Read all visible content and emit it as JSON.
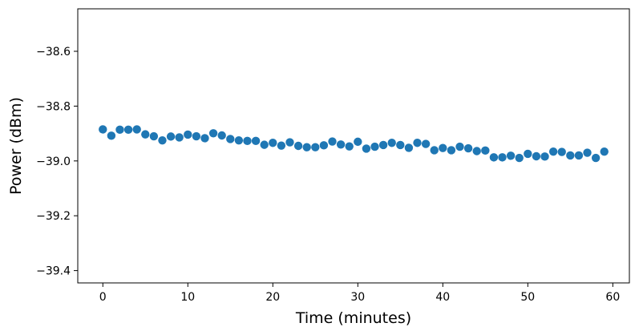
{
  "chart_data": {
    "type": "scatter",
    "title": "",
    "xlabel": "Time (minutes)",
    "ylabel": "Power (dBm)",
    "xlim": [
      -2.95,
      61.95
    ],
    "ylim": [
      -39.445,
      -38.445
    ],
    "xticks": [
      0,
      10,
      20,
      30,
      40,
      50,
      60
    ],
    "yticks": [
      -39.4,
      -39.2,
      -39.0,
      -38.8,
      -38.6
    ],
    "xtick_labels": [
      "0",
      "10",
      "20",
      "30",
      "40",
      "50",
      "60"
    ],
    "ytick_labels": [
      "−39.4",
      "−39.2",
      "−39.0",
      "−38.8",
      "−38.6"
    ],
    "grid": false,
    "marker_color": "#1f77b4",
    "series": [
      {
        "x": [
          0,
          1,
          2,
          3,
          4,
          5,
          6,
          7,
          8,
          9,
          10,
          11,
          12,
          13,
          14,
          15,
          16,
          17,
          18,
          19,
          20,
          21,
          22,
          23,
          24,
          25,
          26,
          27,
          28,
          29,
          30,
          31,
          32,
          33,
          34,
          35,
          36,
          37,
          38,
          39,
          40,
          41,
          42,
          43,
          44,
          45,
          46,
          47,
          48,
          49,
          50,
          51,
          52,
          53,
          54,
          55,
          56,
          57,
          58,
          59
        ],
        "y": [
          -38.885,
          -38.908,
          -38.886,
          -38.886,
          -38.885,
          -38.903,
          -38.91,
          -38.925,
          -38.911,
          -38.914,
          -38.904,
          -38.91,
          -38.917,
          -38.899,
          -38.907,
          -38.92,
          -38.925,
          -38.927,
          -38.927,
          -38.941,
          -38.934,
          -38.944,
          -38.932,
          -38.945,
          -38.95,
          -38.95,
          -38.943,
          -38.929,
          -38.94,
          -38.947,
          -38.93,
          -38.955,
          -38.948,
          -38.942,
          -38.934,
          -38.942,
          -38.952,
          -38.934,
          -38.938,
          -38.961,
          -38.953,
          -38.961,
          -38.948,
          -38.954,
          -38.964,
          -38.962,
          -38.987,
          -38.987,
          -38.981,
          -38.989,
          -38.974,
          -38.983,
          -38.984,
          -38.966,
          -38.967,
          -38.98,
          -38.98,
          -38.97,
          -38.989,
          -38.966
        ]
      }
    ]
  }
}
